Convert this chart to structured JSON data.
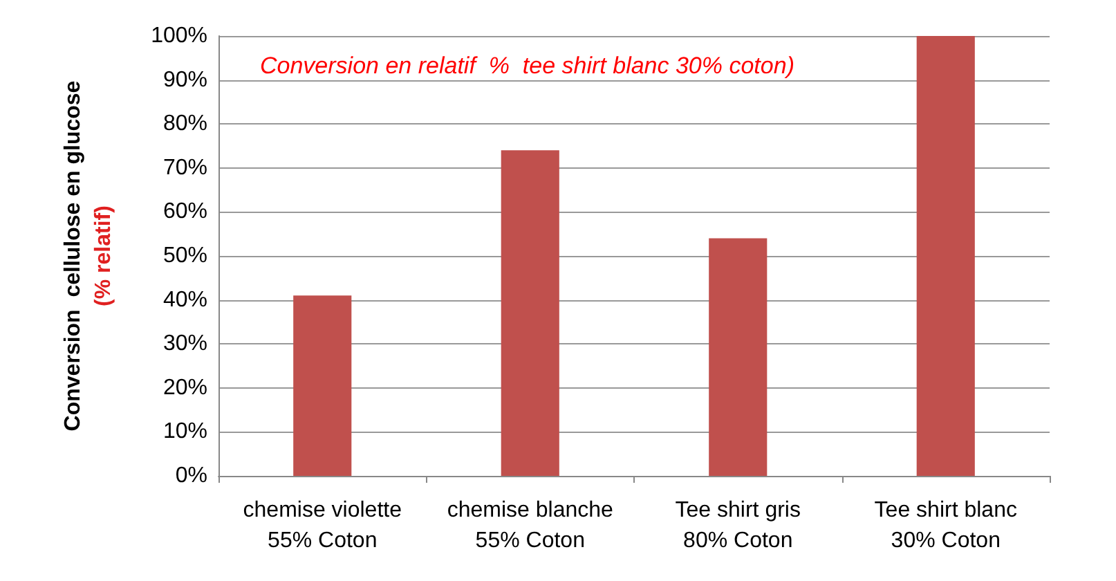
{
  "chart_data": {
    "type": "bar",
    "categories": [
      "chemise violette\n55% Coton",
      "chemise blanche\n55% Coton",
      "Tee shirt gris\n80% Coton",
      "Tee shirt blanc\n30% Coton"
    ],
    "values": [
      41,
      74,
      54,
      100
    ],
    "color": "#c0504d",
    "ylabel": "Conversion  cellulose en glucose\n(% relatif)",
    "annotations": [
      "Conversion en relatif  %  tee shirt blanc 30% coton)"
    ],
    "ylim": [
      0,
      100
    ],
    "yticks": [
      {
        "value": 0,
        "label": "0%"
      },
      {
        "value": 10,
        "label": "10%"
      },
      {
        "value": 20,
        "label": "20%"
      },
      {
        "value": 30,
        "label": "30%"
      },
      {
        "value": 40,
        "label": "40%"
      },
      {
        "value": 50,
        "label": "50%"
      },
      {
        "value": 60,
        "label": "60%"
      },
      {
        "value": 70,
        "label": "70%"
      },
      {
        "value": 80,
        "label": "80%"
      },
      {
        "value": 90,
        "label": "90%"
      },
      {
        "value": 100,
        "label": "100%"
      }
    ],
    "grid": "y"
  }
}
